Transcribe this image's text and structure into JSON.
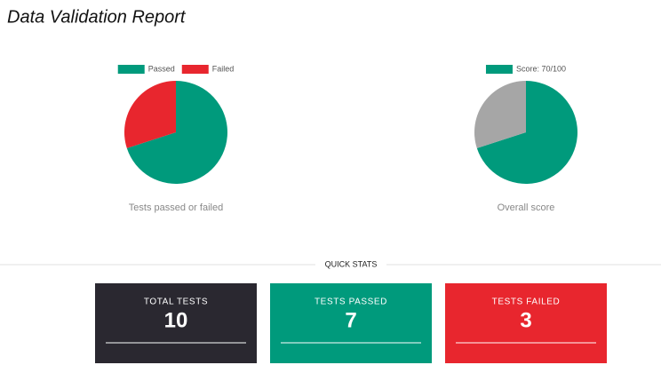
{
  "title": "Data Validation Report",
  "chart_data": [
    {
      "type": "pie",
      "caption": "Tests passed or failed",
      "categories": [
        "Passed",
        "Failed"
      ],
      "values": [
        7,
        3
      ],
      "colors": [
        "#009a7c",
        "#e8262e"
      ]
    },
    {
      "type": "pie",
      "caption": "Overall score",
      "categories": [
        "Score: 70/100",
        null
      ],
      "values": [
        70,
        30
      ],
      "colors": [
        "#009a7c",
        "#a6a6a6"
      ]
    }
  ],
  "stats": {
    "title": "QUICK STATS",
    "cards": [
      {
        "label": "TOTAL TESTS",
        "value": 10,
        "color": "#2a2830"
      },
      {
        "label": "TESTS PASSED",
        "value": 7,
        "color": "#009a7c"
      },
      {
        "label": "TESTS FAILED",
        "value": 3,
        "color": "#e8262e"
      }
    ]
  }
}
